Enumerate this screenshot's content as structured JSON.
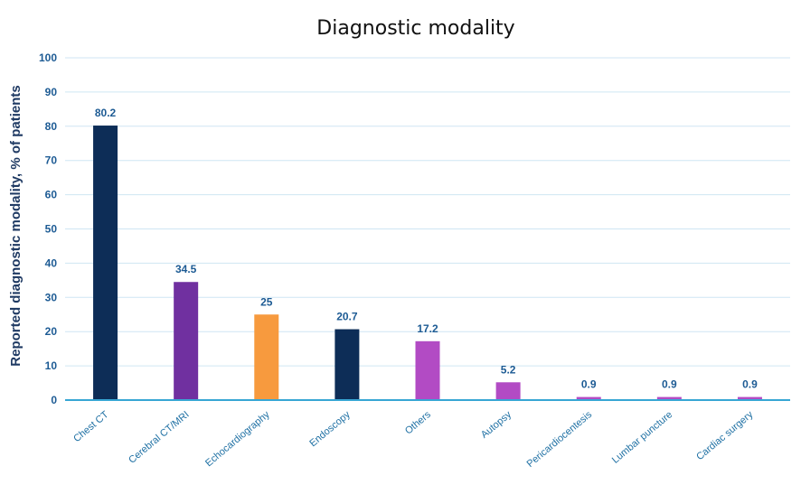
{
  "chart_data": {
    "type": "bar",
    "title": "Diagnostic modality",
    "xlabel": "",
    "ylabel": "Reported diagnostic modality, % of patients",
    "ylim": [
      0,
      100
    ],
    "yticks": [
      0,
      10,
      20,
      30,
      40,
      50,
      60,
      70,
      80,
      90,
      100
    ],
    "grid": true,
    "legend": "none",
    "categories": [
      "Chest CT",
      "Cerebral CT/MRI",
      "Echocardiography",
      "Endoscopy",
      "Others",
      "Autopsy",
      "Pericardiocentesis",
      "Lumbar puncture",
      "Cardiac surgery"
    ],
    "values": [
      80.2,
      34.5,
      25,
      20.7,
      17.2,
      5.2,
      0.9,
      0.9,
      0.9
    ],
    "value_labels": [
      "80.2",
      "34.5",
      "25",
      "20.7",
      "17.2",
      "5.2",
      "0.9",
      "0.9",
      "0.9"
    ],
    "bar_colors": [
      "#0d2d57",
      "#7030a0",
      "#f79a3e",
      "#0d2d57",
      "#b24bc4",
      "#b24bc4",
      "#b24bc4",
      "#b24bc4",
      "#b24bc4"
    ]
  }
}
